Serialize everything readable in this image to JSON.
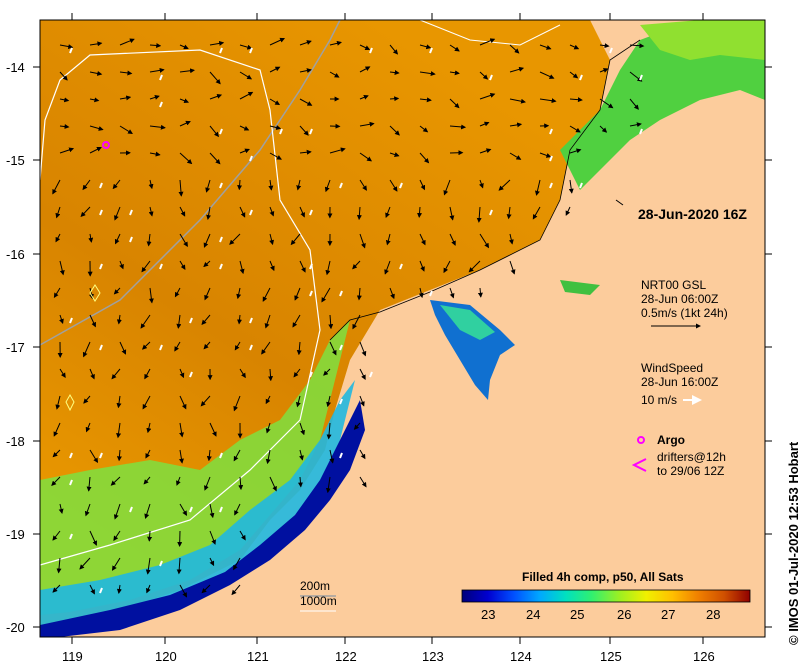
{
  "map": {
    "timestamp": "28-Jun-2020 16Z",
    "lon_ticks": [
      "119",
      "120",
      "121",
      "122",
      "123",
      "124",
      "125",
      "126"
    ],
    "lat_ticks": [
      "-14",
      "-15",
      "-16",
      "-17",
      "-18",
      "-19",
      "-20"
    ],
    "credit": "© IMOS 01-Jul-2020 12:53 Hobart",
    "depth_legend": {
      "line1": "200m",
      "line2": "1000m"
    }
  },
  "legend": {
    "currents": {
      "title": "NRT00 GSL",
      "time": "28-Jun 06:00Z",
      "scale": "0.5m/s (1kt 24h)"
    },
    "wind": {
      "title": "WindSpeed",
      "time": "28-Jun 16:00Z",
      "scale": "10 m/s"
    },
    "argo": {
      "label": "Argo",
      "color": "#ff00ff"
    },
    "drifters": {
      "line1": "drifters@12h",
      "line2": "to 29/06 12Z",
      "color": "#ff00ff"
    }
  },
  "colorbar": {
    "title": "Filled 4h comp, p50, All Sats",
    "ticks": [
      "23",
      "24",
      "25",
      "26",
      "27",
      "28"
    ],
    "colors": [
      "#00007a",
      "#0000d0",
      "#0050ff",
      "#00a8ff",
      "#00e0c0",
      "#30f070",
      "#a0f020",
      "#f0f000",
      "#ffc000",
      "#f08000",
      "#d05000",
      "#900000"
    ]
  },
  "land_color": "#fccc9c"
}
